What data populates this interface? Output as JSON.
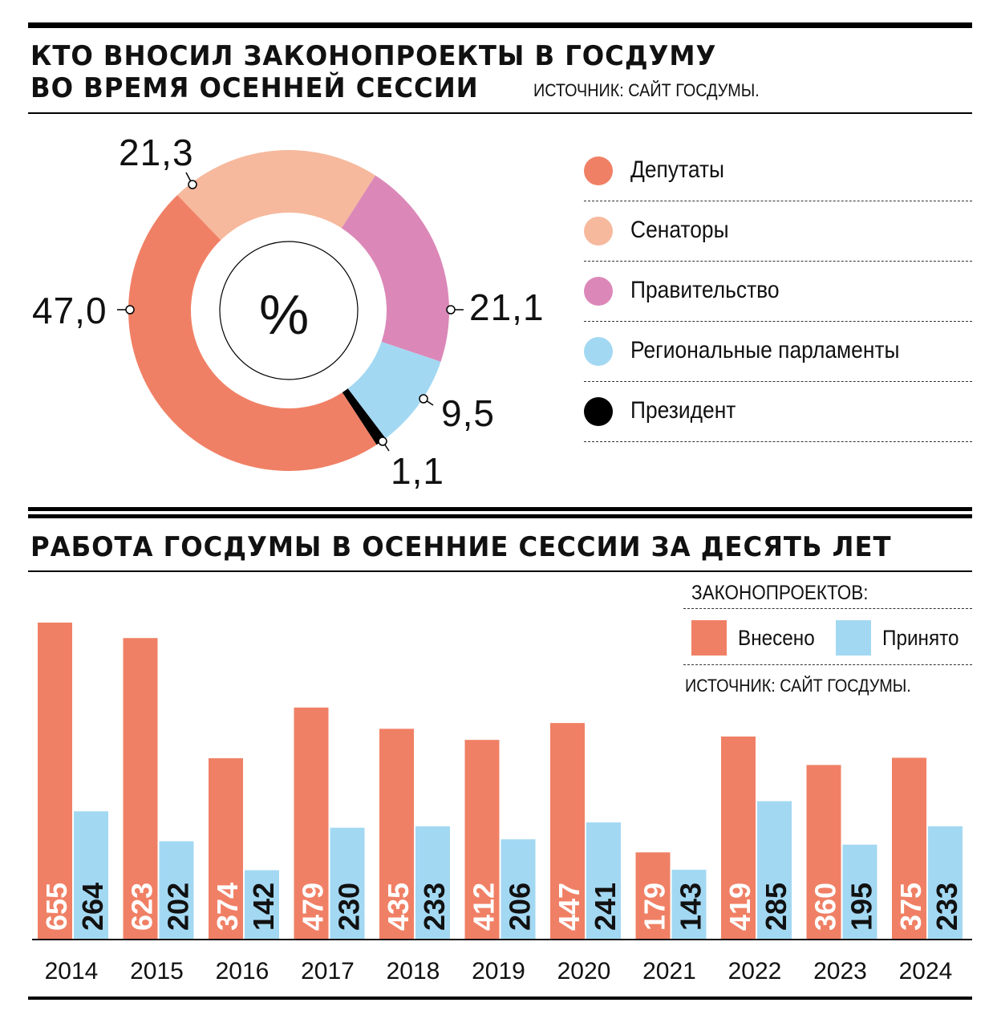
{
  "header": {
    "title_line1": "КТО ВНОСИЛ ЗАКОНОПРОЕКТЫ В ГОСДУМУ",
    "title_line2": "ВО ВРЕМЯ ОСЕННЕЙ СЕССИИ",
    "source": "ИСТОЧНИК: САЙТ ГОСДУМЫ."
  },
  "chart_data": [
    {
      "type": "pie",
      "title": "КТО ВНОСИЛ ЗАКОНОПРОЕКТЫ В ГОСДУМУ ВО ВРЕМЯ ОСЕННЕЙ СЕССИИ",
      "center_label": "%",
      "slices": [
        {
          "name": "Депутаты",
          "value": 47.0,
          "label": "47,0",
          "color": "#f08065"
        },
        {
          "name": "Сенаторы",
          "value": 21.3,
          "label": "21,3",
          "color": "#f6b99d"
        },
        {
          "name": "Правительство",
          "value": 21.1,
          "label": "21,1",
          "color": "#db88b8"
        },
        {
          "name": "Региональные парламенты",
          "value": 9.5,
          "label": "9,5",
          "color": "#a3d8f2"
        },
        {
          "name": "Президент",
          "value": 1.1,
          "label": "1,1",
          "color": "#000000"
        }
      ]
    },
    {
      "type": "bar",
      "title": "РАБОТА ГОСДУМЫ В ОСЕННИЕ СЕССИИ ЗА ДЕСЯТЬ ЛЕТ",
      "legend_title": "ЗАКОНОПРОЕКТОВ:",
      "legend_position": "top-right",
      "source": "ИСТОЧНИК: САЙТ ГОСДУМЫ.",
      "categories": [
        "2014",
        "2015",
        "2016",
        "2017",
        "2018",
        "2019",
        "2020",
        "2021",
        "2022",
        "2023",
        "2024"
      ],
      "series": [
        {
          "name": "Внесено",
          "color": "#f08065",
          "values": [
            655,
            623,
            374,
            479,
            435,
            412,
            447,
            179,
            419,
            360,
            375
          ]
        },
        {
          "name": "Принято",
          "color": "#a3d8f2",
          "values": [
            264,
            202,
            142,
            230,
            233,
            206,
            241,
            143,
            285,
            195,
            233
          ]
        }
      ],
      "ylim": [
        0,
        700
      ]
    }
  ]
}
